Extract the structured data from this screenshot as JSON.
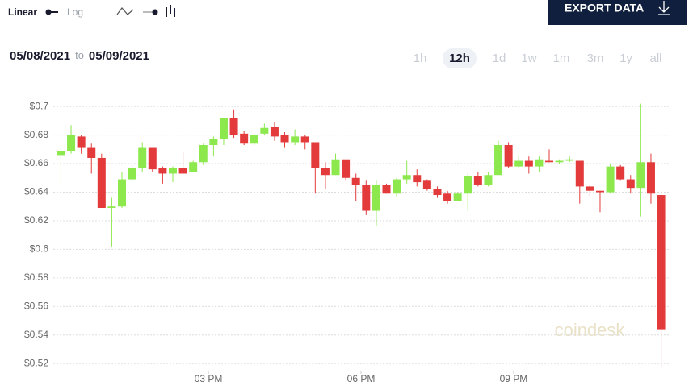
{
  "controls": {
    "scale_linear": "Linear",
    "scale_log": "Log",
    "export": "EXPORT DATA",
    "date_from": "05/08/2021",
    "date_sep": "to",
    "date_to": "05/09/2021",
    "ranges": [
      "1h",
      "12h",
      "1d",
      "1w",
      "1m",
      "3m",
      "1y",
      "all"
    ],
    "selected_range": 1
  },
  "watermark": "coindesk",
  "chart_data": {
    "type": "candlestick",
    "up_color": "#8de84e",
    "down_color": "#e33b3b",
    "grid": true,
    "xlim": [
      11.95,
      24.05
    ],
    "xticks": [
      {
        "value": 15,
        "label": "03 PM"
      },
      {
        "value": 18,
        "label": "06 PM"
      },
      {
        "value": 21,
        "label": "09 PM"
      }
    ],
    "ylim": [
      0.515,
      0.708
    ],
    "yticks": [
      {
        "value": 0.52,
        "label": "$0.52"
      },
      {
        "value": 0.54,
        "label": "$0.54"
      },
      {
        "value": 0.56,
        "label": "$0.56"
      },
      {
        "value": 0.58,
        "label": "$0.58"
      },
      {
        "value": 0.6,
        "label": "$0.6"
      },
      {
        "value": 0.62,
        "label": "$0.62"
      },
      {
        "value": 0.64,
        "label": "$0.64"
      },
      {
        "value": 0.66,
        "label": "$0.66"
      },
      {
        "value": 0.68,
        "label": "$0.68"
      },
      {
        "value": 0.7,
        "label": "$0.7"
      }
    ],
    "x": [
      12.1,
      12.3,
      12.5,
      12.7,
      12.9,
      13.1,
      13.3,
      13.5,
      13.7,
      13.9,
      14.1,
      14.3,
      14.5,
      14.7,
      14.9,
      15.1,
      15.3,
      15.5,
      15.7,
      15.9,
      16.1,
      16.3,
      16.5,
      16.7,
      16.9,
      17.1,
      17.3,
      17.5,
      17.7,
      17.9,
      18.1,
      18.3,
      18.5,
      18.7,
      18.9,
      19.1,
      19.3,
      19.5,
      19.7,
      19.9,
      20.1,
      20.3,
      20.5,
      20.7,
      20.9,
      21.1,
      21.3,
      21.5,
      21.7,
      21.9,
      22.1,
      22.3,
      22.5,
      22.7,
      22.9,
      23.1,
      23.3,
      23.5,
      23.7,
      23.9
    ],
    "open": [
      0.666,
      0.669,
      0.679,
      0.671,
      0.664,
      0.629,
      0.63,
      0.649,
      0.657,
      0.671,
      0.657,
      0.653,
      0.657,
      0.654,
      0.661,
      0.673,
      0.677,
      0.692,
      0.681,
      0.674,
      0.681,
      0.686,
      0.68,
      0.675,
      0.679,
      0.675,
      0.657,
      0.652,
      0.663,
      0.65,
      0.645,
      0.627,
      0.645,
      0.639,
      0.649,
      0.652,
      0.648,
      0.642,
      0.639,
      0.634,
      0.639,
      0.651,
      0.645,
      0.652,
      0.673,
      0.658,
      0.662,
      0.658,
      0.662,
      0.661,
      0.662,
      0.662,
      0.644,
      0.641,
      0.64,
      0.658,
      0.649,
      0.643,
      0.661,
      0.638
    ],
    "high": [
      0.671,
      0.687,
      0.68,
      0.674,
      0.667,
      0.636,
      0.654,
      0.659,
      0.675,
      0.671,
      0.658,
      0.658,
      0.668,
      0.662,
      0.674,
      0.679,
      0.692,
      0.698,
      0.683,
      0.681,
      0.688,
      0.689,
      0.682,
      0.684,
      0.68,
      0.675,
      0.661,
      0.667,
      0.663,
      0.653,
      0.648,
      0.648,
      0.646,
      0.65,
      0.662,
      0.656,
      0.649,
      0.644,
      0.641,
      0.64,
      0.653,
      0.654,
      0.654,
      0.676,
      0.675,
      0.666,
      0.665,
      0.665,
      0.67,
      0.663,
      0.665,
      0.662,
      0.645,
      0.641,
      0.66,
      0.659,
      0.652,
      0.702,
      0.667,
      0.641
    ],
    "low": [
      0.644,
      0.667,
      0.667,
      0.653,
      0.629,
      0.602,
      0.629,
      0.647,
      0.654,
      0.654,
      0.646,
      0.647,
      0.653,
      0.654,
      0.659,
      0.665,
      0.673,
      0.678,
      0.673,
      0.673,
      0.68,
      0.676,
      0.671,
      0.673,
      0.67,
      0.639,
      0.642,
      0.652,
      0.648,
      0.634,
      0.624,
      0.616,
      0.639,
      0.637,
      0.646,
      0.644,
      0.641,
      0.636,
      0.632,
      0.634,
      0.627,
      0.644,
      0.644,
      0.652,
      0.657,
      0.657,
      0.653,
      0.654,
      0.661,
      0.66,
      0.661,
      0.632,
      0.637,
      0.626,
      0.639,
      0.648,
      0.639,
      0.623,
      0.632,
      0.517
    ],
    "close": [
      0.669,
      0.68,
      0.671,
      0.664,
      0.629,
      0.63,
      0.649,
      0.657,
      0.671,
      0.656,
      0.653,
      0.657,
      0.653,
      0.661,
      0.673,
      0.677,
      0.692,
      0.68,
      0.674,
      0.68,
      0.685,
      0.679,
      0.675,
      0.679,
      0.675,
      0.657,
      0.652,
      0.663,
      0.65,
      0.645,
      0.627,
      0.645,
      0.639,
      0.649,
      0.652,
      0.647,
      0.642,
      0.638,
      0.634,
      0.639,
      0.651,
      0.645,
      0.652,
      0.673,
      0.658,
      0.662,
      0.658,
      0.663,
      0.661,
      0.662,
      0.663,
      0.644,
      0.641,
      0.64,
      0.658,
      0.649,
      0.643,
      0.661,
      0.639,
      0.544
    ]
  }
}
